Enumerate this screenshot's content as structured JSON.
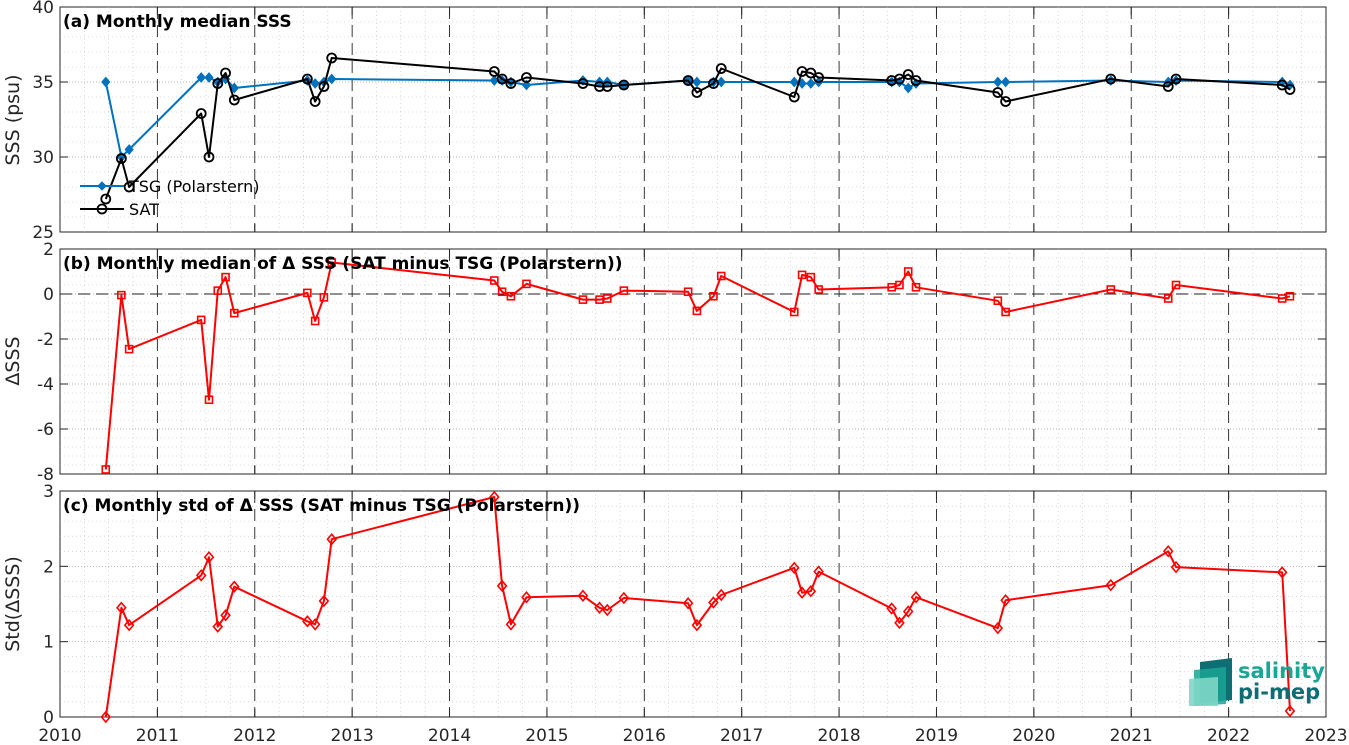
{
  "colors": {
    "tsg": "#0072BD",
    "sat": "#000000",
    "diff": "#FF0000",
    "logo_light": "#1aa595",
    "logo_dark": "#0e6e74"
  },
  "logo": {
    "line1": "salinity",
    "line2": "pi-mep",
    "icon": "wave-stack-icon"
  },
  "x_ticks": [
    "2010",
    "2011",
    "2012",
    "2013",
    "2014",
    "2015",
    "2016",
    "2017",
    "2018",
    "2019",
    "2020",
    "2021",
    "2022",
    "2023"
  ],
  "chart_data": [
    {
      "type": "line",
      "title": "(a) Monthly median SSS",
      "ylabel": "SSS (psu)",
      "xlim": [
        2010,
        2023
      ],
      "ylim": [
        25,
        40
      ],
      "y_ticks": [
        "25",
        "30",
        "35",
        "40"
      ],
      "grid": true,
      "legend_position": "bottom-left",
      "series": [
        {
          "name": "TSG (Polarstern)",
          "marker": "diamond",
          "x": [
            2010.47,
            2010.63,
            2010.71,
            2011.45,
            2011.53,
            2011.62,
            2011.7,
            2011.79,
            2012.54,
            2012.62,
            2012.71,
            2012.79,
            2014.46,
            2014.54,
            2014.63,
            2014.79,
            2015.37,
            2015.54,
            2015.62,
            2015.79,
            2016.45,
            2016.54,
            2016.71,
            2016.79,
            2017.54,
            2017.62,
            2017.71,
            2017.79,
            2018.54,
            2018.62,
            2018.71,
            2018.79,
            2019.63,
            2019.71,
            2020.79,
            2021.38,
            2021.46,
            2022.55,
            2022.63
          ],
          "y": [
            35.0,
            30.0,
            30.5,
            35.3,
            35.3,
            35.0,
            35.2,
            34.6,
            35.1,
            34.9,
            35.0,
            35.2,
            35.1,
            35.1,
            35.0,
            34.8,
            35.1,
            35.0,
            35.0,
            34.8,
            35.1,
            35.0,
            35.0,
            35.0,
            35.0,
            34.9,
            34.9,
            35.0,
            35.0,
            35.0,
            34.6,
            34.9,
            35.0,
            35.0,
            35.1,
            35.0,
            35.1,
            35.0,
            34.8
          ]
        },
        {
          "name": "SAT",
          "marker": "circle",
          "x": [
            2010.47,
            2010.63,
            2010.71,
            2011.45,
            2011.53,
            2011.62,
            2011.7,
            2011.79,
            2012.54,
            2012.62,
            2012.71,
            2012.79,
            2014.46,
            2014.54,
            2014.63,
            2014.79,
            2015.37,
            2015.54,
            2015.62,
            2015.79,
            2016.45,
            2016.54,
            2016.71,
            2016.79,
            2017.54,
            2017.62,
            2017.71,
            2017.79,
            2018.54,
            2018.62,
            2018.71,
            2018.79,
            2019.63,
            2019.71,
            2020.79,
            2021.38,
            2021.46,
            2022.55,
            2022.63
          ],
          "y": [
            27.2,
            29.9,
            28.0,
            32.9,
            30.0,
            34.9,
            35.6,
            33.8,
            35.2,
            33.7,
            34.7,
            36.6,
            35.7,
            35.2,
            34.9,
            35.3,
            34.9,
            34.7,
            34.7,
            34.8,
            35.1,
            34.3,
            34.9,
            35.9,
            34.0,
            35.7,
            35.6,
            35.3,
            35.1,
            35.2,
            35.5,
            35.1,
            34.3,
            33.7,
            35.2,
            34.7,
            35.2,
            34.8,
            34.5
          ]
        }
      ]
    },
    {
      "type": "line",
      "title": "(b) Monthly median of Δ SSS (SAT minus TSG (Polarstern))",
      "ylabel": "ΔSSS",
      "xlim": [
        2010,
        2023
      ],
      "ylim": [
        -8,
        2
      ],
      "y_ticks": [
        "-8",
        "-6",
        "-4",
        "-2",
        "0",
        "2"
      ],
      "zero_line": true,
      "grid": true,
      "series": [
        {
          "marker": "square",
          "x": [
            2010.47,
            2010.63,
            2010.71,
            2011.45,
            2011.53,
            2011.62,
            2011.7,
            2011.79,
            2012.54,
            2012.62,
            2012.71,
            2012.79,
            2014.46,
            2014.54,
            2014.63,
            2014.79,
            2015.37,
            2015.54,
            2015.62,
            2015.79,
            2016.45,
            2016.54,
            2016.71,
            2016.79,
            2017.54,
            2017.62,
            2017.71,
            2017.79,
            2018.54,
            2018.62,
            2018.71,
            2018.79,
            2019.63,
            2019.71,
            2020.79,
            2021.38,
            2021.46,
            2022.55,
            2022.63
          ],
          "y": [
            -7.8,
            -0.05,
            -2.45,
            -1.15,
            -4.7,
            0.15,
            0.75,
            -0.85,
            0.05,
            -1.2,
            -0.15,
            1.4,
            0.6,
            0.1,
            -0.1,
            0.45,
            -0.25,
            -0.25,
            -0.2,
            0.15,
            0.1,
            -0.75,
            -0.1,
            0.8,
            -0.8,
            0.85,
            0.75,
            0.2,
            0.3,
            0.4,
            1.0,
            0.3,
            -0.3,
            -0.8,
            0.2,
            -0.2,
            0.4,
            -0.2,
            -0.1
          ]
        }
      ]
    },
    {
      "type": "line",
      "title": "(c) Monthly std of Δ SSS (SAT minus TSG (Polarstern))",
      "ylabel": "Std(ΔSSS)",
      "xlim": [
        2010,
        2023
      ],
      "ylim": [
        0,
        3
      ],
      "y_ticks": [
        "0",
        "1",
        "2",
        "3"
      ],
      "grid": true,
      "series": [
        {
          "marker": "diamond",
          "x": [
            2010.47,
            2010.63,
            2010.71,
            2011.45,
            2011.53,
            2011.62,
            2011.7,
            2011.79,
            2012.54,
            2012.62,
            2012.71,
            2012.79,
            2014.46,
            2014.54,
            2014.63,
            2014.79,
            2015.37,
            2015.54,
            2015.62,
            2015.79,
            2016.45,
            2016.54,
            2016.71,
            2016.79,
            2017.54,
            2017.62,
            2017.71,
            2017.79,
            2018.54,
            2018.62,
            2018.71,
            2018.79,
            2019.63,
            2019.71,
            2020.79,
            2021.38,
            2021.46,
            2022.55,
            2022.63
          ],
          "y": [
            0.0,
            1.45,
            1.22,
            1.88,
            2.12,
            1.2,
            1.35,
            1.73,
            1.27,
            1.23,
            1.54,
            2.36,
            2.92,
            1.74,
            1.23,
            1.59,
            1.61,
            1.45,
            1.42,
            1.58,
            1.51,
            1.22,
            1.52,
            1.62,
            1.98,
            1.65,
            1.67,
            1.93,
            1.44,
            1.25,
            1.4,
            1.59,
            1.18,
            1.55,
            1.75,
            2.2,
            1.99,
            1.92,
            0.08
          ]
        }
      ]
    }
  ]
}
